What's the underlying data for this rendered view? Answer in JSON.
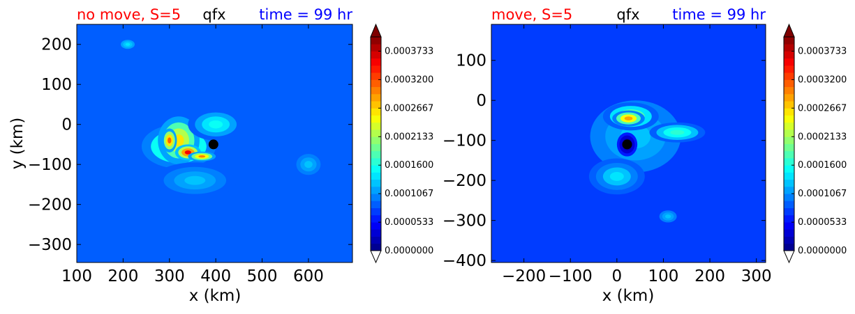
{
  "chart_data": [
    {
      "type": "heatmap",
      "title_left": "no move, S=5",
      "title_center": "qfx",
      "title_right": "time = 99 hr",
      "xlabel": "x (km)",
      "ylabel": "y (km)",
      "x_ticks": [
        "100",
        "200",
        "300",
        "400",
        "500",
        "600"
      ],
      "y_ticks": [
        "200",
        "100",
        "0",
        "−100",
        "−200",
        "−300"
      ],
      "xlim": [
        100,
        695
      ],
      "ylim": [
        -345,
        250
      ],
      "marker": {
        "x": 395,
        "y": -50
      },
      "background_value": 8e-05,
      "features": [
        {
          "x": 320,
          "y": -55,
          "rx": 80,
          "ry": 55,
          "value": 0.00021
        },
        {
          "x": 320,
          "y": -40,
          "rx": 45,
          "ry": 60,
          "value": 0.00026
        },
        {
          "x": 340,
          "y": -70,
          "rx": 28,
          "ry": 20,
          "value": 0.00035
        },
        {
          "x": 300,
          "y": -40,
          "rx": 16,
          "ry": 30,
          "value": 0.00031
        },
        {
          "x": 370,
          "y": -80,
          "rx": 30,
          "ry": 12,
          "value": 0.0003
        },
        {
          "x": 400,
          "y": 0,
          "rx": 60,
          "ry": 40,
          "value": 0.00015
        },
        {
          "x": 355,
          "y": -140,
          "rx": 90,
          "ry": 45,
          "value": 0.00012
        },
        {
          "x": 600,
          "y": -100,
          "rx": 35,
          "ry": 35,
          "value": 0.00012
        },
        {
          "x": 210,
          "y": 200,
          "rx": 20,
          "ry": 15,
          "value": 0.00014
        }
      ]
    },
    {
      "type": "heatmap",
      "title_left": "move, S=5",
      "title_center": "qfx",
      "title_right": "time = 99 hr",
      "xlabel": "x (km)",
      "ylabel": "",
      "x_ticks": [
        "−200",
        "−100",
        "0",
        "100",
        "200",
        "300"
      ],
      "y_ticks": [
        "100",
        "0",
        "−100",
        "−200",
        "−300",
        "−400"
      ],
      "xlim": [
        -270,
        320
      ],
      "ylim": [
        -405,
        190
      ],
      "marker": {
        "x": 22,
        "y": -110
      },
      "background_value": 7e-05,
      "features": [
        {
          "x": 40,
          "y": -90,
          "rx": 130,
          "ry": 120,
          "value": 0.00012
        },
        {
          "x": 30,
          "y": -40,
          "rx": 60,
          "ry": 35,
          "value": 0.00021
        },
        {
          "x": 25,
          "y": -45,
          "rx": 35,
          "ry": 20,
          "value": 0.00029
        },
        {
          "x": 130,
          "y": -80,
          "rx": 60,
          "ry": 25,
          "value": 0.00017
        },
        {
          "x": 0,
          "y": -190,
          "rx": 60,
          "ry": 45,
          "value": 0.00014
        },
        {
          "x": 110,
          "y": -290,
          "rx": 25,
          "ry": 20,
          "value": 0.00013
        },
        {
          "x": 22,
          "y": -110,
          "rx": 22,
          "ry": 30,
          "value": 1e-05
        }
      ]
    }
  ],
  "colorbar": {
    "min": 0.0,
    "max": 0.0004,
    "levels": 30,
    "tick_values": [
      0.0,
      5.33e-05,
      0.0001067,
      0.00016,
      0.0002133,
      0.0002667,
      0.00032,
      0.0003733
    ],
    "tick_labels": [
      "0.0000000",
      "0.0000533",
      "0.0001067",
      "0.0001600",
      "0.0002133",
      "0.0002667",
      "0.0003200",
      "0.0003733"
    ],
    "colormap": "jet",
    "extend": "both"
  },
  "colors": {
    "title_left": "#ff0000",
    "title_center": "#000000",
    "title_right": "#0000ff",
    "marker": "#000000"
  }
}
